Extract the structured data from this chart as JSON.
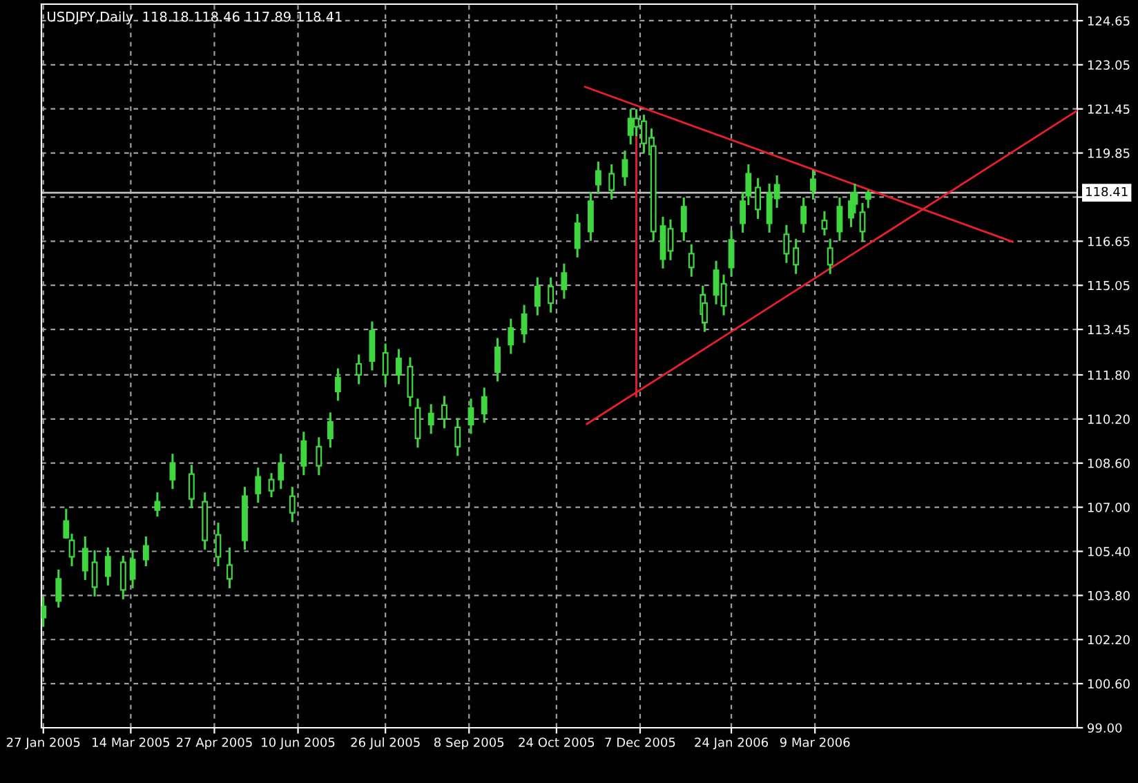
{
  "chart_data": {
    "type": "candlestick",
    "title": "USDJPY,Daily  118.18 118.46 117.89 118.41",
    "x": [
      "2005-01-27",
      "2005-02-04",
      "2005-02-08",
      "2005-02-11",
      "2005-02-18",
      "2005-02-23",
      "2005-03-02",
      "2005-03-10",
      "2005-03-15",
      "2005-03-22",
      "2005-03-28",
      "2005-04-05",
      "2005-04-15",
      "2005-04-22",
      "2005-04-29",
      "2005-05-05",
      "2005-05-13",
      "2005-05-20",
      "2005-05-27",
      "2005-06-01",
      "2005-06-07",
      "2005-06-13",
      "2005-06-21",
      "2005-06-27",
      "2005-07-01",
      "2005-07-12",
      "2005-07-19",
      "2005-07-26",
      "2005-08-02",
      "2005-08-08",
      "2005-08-12",
      "2005-08-19",
      "2005-08-26",
      "2005-09-02",
      "2005-09-09",
      "2005-09-16",
      "2005-09-23",
      "2005-09-30",
      "2005-10-07",
      "2005-10-14",
      "2005-10-21",
      "2005-10-28",
      "2005-11-04",
      "2005-11-11",
      "2005-11-15",
      "2005-11-22",
      "2005-11-29",
      "2005-12-02",
      "2005-12-05",
      "2005-12-09",
      "2005-12-13",
      "2005-12-14",
      "2005-12-19",
      "2005-12-23",
      "2005-12-30",
      "2006-01-03",
      "2006-01-09",
      "2006-01-10",
      "2006-01-16",
      "2006-01-20",
      "2006-01-24",
      "2006-01-30",
      "2006-02-02",
      "2006-02-07",
      "2006-02-13",
      "2006-02-17",
      "2006-02-22",
      "2006-02-27",
      "2006-03-03",
      "2006-03-08",
      "2006-03-14",
      "2006-03-17",
      "2006-03-22",
      "2006-03-28",
      "2006-03-30",
      "2006-04-03",
      "2006-04-06"
    ],
    "ohlc": [
      [
        103.0,
        103.7,
        102.7,
        103.4
      ],
      [
        103.6,
        104.7,
        103.4,
        104.4
      ],
      [
        105.9,
        106.9,
        105.9,
        106.5
      ],
      [
        105.8,
        106.0,
        104.9,
        105.2
      ],
      [
        104.7,
        105.9,
        104.4,
        105.5
      ],
      [
        105.0,
        105.4,
        103.8,
        104.1
      ],
      [
        104.5,
        105.5,
        104.2,
        105.2
      ],
      [
        105.0,
        105.2,
        103.7,
        104.0
      ],
      [
        104.4,
        105.4,
        104.1,
        105.1
      ],
      [
        105.1,
        105.9,
        104.9,
        105.6
      ],
      [
        106.9,
        107.5,
        106.7,
        107.2
      ],
      [
        108.0,
        108.9,
        107.7,
        108.6
      ],
      [
        108.2,
        108.5,
        107.0,
        107.3
      ],
      [
        107.2,
        107.5,
        105.5,
        105.8
      ],
      [
        106.0,
        106.4,
        104.9,
        105.2
      ],
      [
        104.9,
        105.5,
        104.1,
        104.4
      ],
      [
        105.8,
        107.7,
        105.5,
        107.4
      ],
      [
        107.5,
        108.4,
        107.2,
        108.1
      ],
      [
        108.0,
        108.2,
        107.4,
        107.6
      ],
      [
        108.0,
        108.9,
        107.7,
        108.6
      ],
      [
        107.4,
        107.7,
        106.5,
        106.8
      ],
      [
        108.5,
        109.7,
        108.2,
        109.4
      ],
      [
        109.2,
        109.5,
        108.2,
        108.5
      ],
      [
        109.5,
        110.4,
        109.2,
        110.1
      ],
      [
        111.2,
        112.0,
        110.9,
        111.7
      ],
      [
        112.2,
        112.5,
        111.5,
        111.8
      ],
      [
        112.3,
        113.7,
        112.0,
        113.4
      ],
      [
        112.6,
        112.9,
        111.5,
        111.8
      ],
      [
        111.8,
        112.7,
        111.5,
        112.4
      ],
      [
        112.1,
        112.4,
        110.7,
        111.0
      ],
      [
        110.6,
        110.9,
        109.2,
        109.5
      ],
      [
        110.0,
        110.7,
        109.7,
        110.4
      ],
      [
        110.7,
        111.0,
        109.9,
        110.2
      ],
      [
        109.9,
        110.2,
        108.9,
        109.2
      ],
      [
        110.0,
        110.9,
        109.7,
        110.6
      ],
      [
        110.4,
        111.3,
        110.1,
        111.0
      ],
      [
        111.9,
        113.1,
        111.6,
        112.8
      ],
      [
        112.9,
        113.8,
        112.6,
        113.5
      ],
      [
        113.3,
        114.3,
        113.0,
        114.0
      ],
      [
        114.3,
        115.3,
        114.0,
        115.0
      ],
      [
        115.0,
        115.3,
        114.1,
        114.4
      ],
      [
        114.9,
        115.8,
        114.6,
        115.5
      ],
      [
        116.4,
        117.6,
        116.1,
        117.3
      ],
      [
        117.0,
        118.4,
        116.7,
        118.1
      ],
      [
        118.7,
        119.5,
        118.4,
        119.2
      ],
      [
        119.1,
        119.4,
        118.2,
        118.5
      ],
      [
        119.0,
        119.9,
        118.7,
        119.6
      ],
      [
        120.5,
        121.4,
        120.2,
        121.1
      ],
      [
        121.1,
        121.4,
        120.5,
        120.8
      ],
      [
        121.0,
        121.2,
        119.9,
        120.2
      ],
      [
        120.4,
        120.7,
        119.5,
        119.8
      ],
      [
        120.1,
        120.4,
        116.7,
        117.0
      ],
      [
        116.0,
        117.5,
        115.7,
        117.2
      ],
      [
        117.1,
        117.4,
        116.0,
        116.3
      ],
      [
        117.0,
        118.2,
        116.7,
        117.9
      ],
      [
        116.2,
        116.5,
        115.4,
        115.7
      ],
      [
        114.7,
        115.0,
        113.7,
        114.0
      ],
      [
        114.4,
        114.7,
        113.4,
        113.7
      ],
      [
        114.7,
        115.9,
        114.4,
        115.6
      ],
      [
        115.1,
        115.4,
        114.0,
        114.3
      ],
      [
        115.7,
        117.0,
        115.4,
        116.7
      ],
      [
        117.3,
        118.4,
        117.0,
        118.1
      ],
      [
        118.3,
        119.4,
        118.0,
        119.1
      ],
      [
        118.6,
        118.9,
        117.5,
        117.8
      ],
      [
        117.3,
        118.7,
        117.0,
        118.4
      ],
      [
        118.2,
        119.0,
        117.9,
        118.7
      ],
      [
        116.9,
        117.2,
        115.9,
        116.2
      ],
      [
        116.4,
        116.7,
        115.5,
        115.8
      ],
      [
        117.3,
        118.2,
        117.0,
        117.9
      ],
      [
        118.5,
        119.2,
        118.2,
        118.9
      ],
      [
        117.4,
        117.7,
        116.9,
        117.1
      ],
      [
        116.4,
        116.7,
        115.5,
        115.8
      ],
      [
        117.0,
        118.2,
        116.7,
        117.9
      ],
      [
        117.5,
        118.4,
        117.2,
        118.1
      ],
      [
        118.0,
        118.7,
        117.7,
        118.4
      ],
      [
        117.7,
        118.0,
        116.7,
        117.0
      ],
      [
        118.18,
        118.46,
        117.89,
        118.41
      ]
    ],
    "color": "#3fd63f",
    "series": [
      {
        "type": "line",
        "color": "#e8202a",
        "x": [
          "2005-11-08",
          "2006-06-21"
        ],
        "values": [
          122.25,
          116.63
        ]
      },
      {
        "type": "line",
        "color": "#e8202a",
        "x": [
          "2005-11-09",
          "2006-07-25"
        ],
        "values": [
          110.02,
          121.39
        ]
      },
      {
        "type": "line",
        "color": "#e8202a",
        "x": [
          "2005-12-05",
          "2005-12-05"
        ],
        "values": [
          121.39,
          111.02
        ]
      }
    ],
    "xlim": [
      "2005-01-26",
      "2006-07-25"
    ],
    "xticks": [
      {
        "value": "2005-01-27",
        "label": "27 Jan 2005"
      },
      {
        "value": "2005-03-14",
        "label": "14 Mar 2005"
      },
      {
        "value": "2005-04-27",
        "label": "27 Apr 2005"
      },
      {
        "value": "2005-06-10",
        "label": "10 Jun 2005"
      },
      {
        "value": "2005-07-26",
        "label": "26 Jul 2005"
      },
      {
        "value": "2005-09-08",
        "label": "8 Sep 2005"
      },
      {
        "value": "2005-10-24",
        "label": "24 Oct 2005"
      },
      {
        "value": "2005-12-07",
        "label": "7 Dec 2005"
      },
      {
        "value": "2006-01-24",
        "label": "24 Jan 2006"
      },
      {
        "value": "2006-03-09",
        "label": "9 Mar 2006"
      }
    ],
    "ylim": [
      99.0,
      125.25
    ],
    "yticks": [
      {
        "value": 99.0,
        "label": "99.00"
      },
      {
        "value": 100.6,
        "label": "100.60"
      },
      {
        "value": 102.2,
        "label": "102.20"
      },
      {
        "value": 103.8,
        "label": "103.80"
      },
      {
        "value": 105.4,
        "label": "105.40"
      },
      {
        "value": 107.0,
        "label": "107.00"
      },
      {
        "value": 108.6,
        "label": "108.60"
      },
      {
        "value": 110.2,
        "label": "110.20"
      },
      {
        "value": 111.8,
        "label": "111.80"
      },
      {
        "value": 113.45,
        "label": "113.45"
      },
      {
        "value": 115.05,
        "label": "115.05"
      },
      {
        "value": 116.65,
        "label": "116.65"
      },
      {
        "value": 118.25,
        "label": null
      },
      {
        "value": 119.85,
        "label": "119.85"
      },
      {
        "value": 121.45,
        "label": "121.45"
      },
      {
        "value": 123.05,
        "label": "123.05"
      },
      {
        "value": 124.65,
        "label": "124.65"
      }
    ],
    "ref_lines": [
      {
        "axis": "y",
        "value": 118.41,
        "label": "118.41",
        "color": "#c0c0c0"
      }
    ],
    "grid": true,
    "legend": false
  }
}
